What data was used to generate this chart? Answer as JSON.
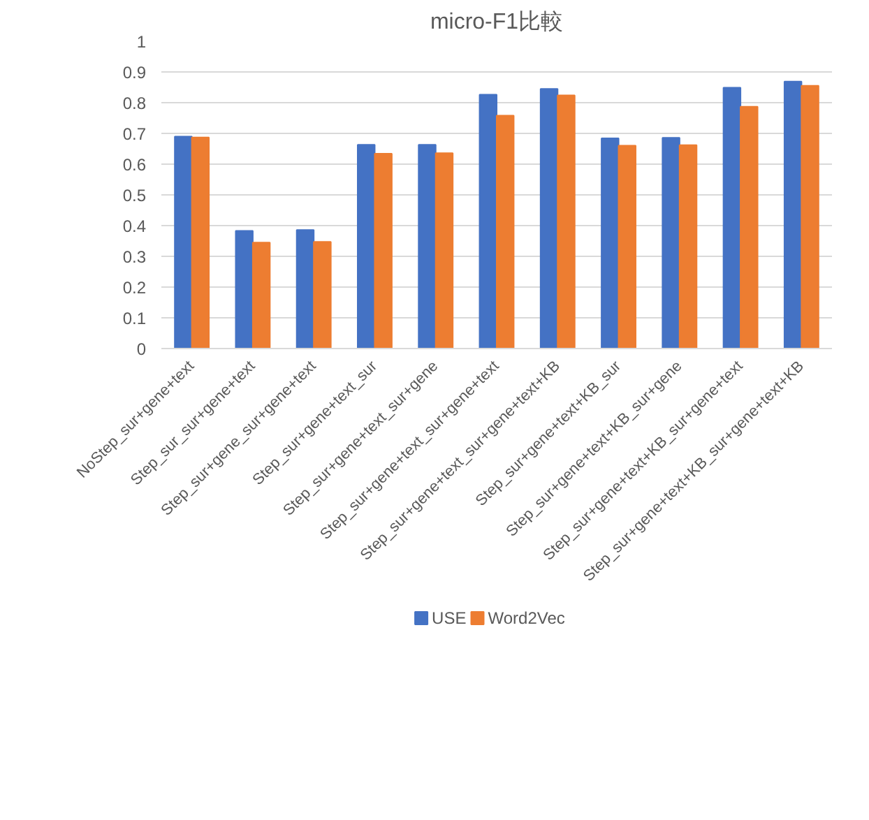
{
  "chart_data": {
    "type": "bar",
    "title": "micro-F1比較",
    "categories": [
      "NoStep_sur+gene+text",
      "Step_sur_sur+gene+text",
      "Step_sur+gene_sur+gene+text",
      "Step_sur+gene+text_sur",
      "Step_sur+gene+text_sur+gene",
      "Step_sur+gene+text_sur+gene+text",
      "Step_sur+gene+text_sur+gene+text+KB",
      "Step_sur+gene+text+KB_sur",
      "Step_sur+gene+text+KB_sur+gene",
      "Step_sur+gene+text+KB_sur+gene+text",
      "Step_sur+gene+text+KB_sur+gene+text+KB"
    ],
    "series": [
      {
        "name": "USE",
        "color": "#4472c4",
        "values": [
          0.69,
          0.383,
          0.386,
          0.663,
          0.663,
          0.826,
          0.845,
          0.684,
          0.686,
          0.849,
          0.869
        ]
      },
      {
        "name": "Word2Vec",
        "color": "#ed7d31",
        "values": [
          0.687,
          0.345,
          0.347,
          0.634,
          0.636,
          0.758,
          0.824,
          0.66,
          0.662,
          0.787,
          0.855
        ]
      }
    ],
    "ylim": [
      0,
      1
    ],
    "yticks": [
      0,
      0.1,
      0.2,
      0.3,
      0.4,
      0.5,
      0.6,
      0.7,
      0.8,
      0.9,
      1
    ],
    "grid": "y",
    "legend": "bottom"
  }
}
